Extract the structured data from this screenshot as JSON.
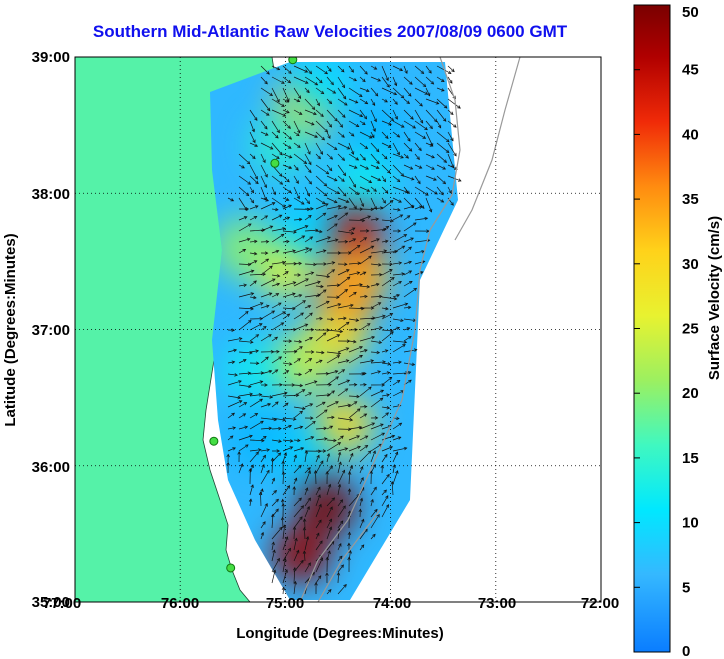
{
  "title": "Southern Mid-Atlantic Raw Velocities 2007/08/09 0600 GMT",
  "x_axis": {
    "label": "Longitude (Degrees:Minutes)",
    "ticks": [
      "77:00",
      "76:00",
      "75:00",
      "74:00",
      "73:00",
      "72:00"
    ]
  },
  "y_axis": {
    "label": "Latitude (Degrees:Minutes)",
    "ticks": [
      "39:00",
      "38:00",
      "37:00",
      "36:00",
      "35:00"
    ]
  },
  "colorbar": {
    "label": "Surface Velocity (cm/s)",
    "min": 0,
    "max": 50,
    "ticks": [
      "0",
      "5",
      "10",
      "15",
      "20",
      "25",
      "30",
      "35",
      "40",
      "45",
      "50"
    ]
  },
  "chart_data": {
    "type": "heatmap",
    "xlim": [
      -77,
      -72
    ],
    "ylim": [
      35,
      39
    ],
    "grid": true,
    "colormap": "jet",
    "land_color": "#55f2a8",
    "water_color": "#ffffff",
    "site_color": "#44dd44",
    "hotspots": [
      {
        "lon": -74.35,
        "lat": 37.7,
        "value": 45
      },
      {
        "lon": -74.4,
        "lat": 37.25,
        "value": 38
      },
      {
        "lon": -74.3,
        "lat": 37.4,
        "value": 34
      },
      {
        "lon": -74.5,
        "lat": 36.95,
        "value": 30
      },
      {
        "lon": -74.85,
        "lat": 36.75,
        "value": 24
      },
      {
        "lon": -74.45,
        "lat": 36.3,
        "value": 30
      },
      {
        "lon": -74.6,
        "lat": 35.7,
        "value": 50
      },
      {
        "lon": -74.85,
        "lat": 35.35,
        "value": 48
      },
      {
        "lon": -74.8,
        "lat": 38.65,
        "value": 30
      },
      {
        "lon": -75.0,
        "lat": 37.45,
        "value": 26
      },
      {
        "lon": -75.05,
        "lat": 38.35,
        "value": 14
      },
      {
        "lon": -74.15,
        "lat": 38.45,
        "value": 6
      },
      {
        "lon": -74.8,
        "lat": 37.75,
        "value": 9
      },
      {
        "lon": -75.25,
        "lat": 36.2,
        "value": 6
      },
      {
        "lon": -74.85,
        "lat": 36.1,
        "value": 8
      },
      {
        "lon": -74.65,
        "lat": 38.8,
        "value": 10
      },
      {
        "lon": -75.4,
        "lat": 37.6,
        "value": 20
      },
      {
        "lon": -75.3,
        "lat": 36.7,
        "value": 12
      },
      {
        "lon": -74.25,
        "lat": 38.1,
        "value": 12
      }
    ],
    "sites": [
      {
        "lon": -74.93,
        "lat": 38.98
      },
      {
        "lon": -75.1,
        "lat": 38.22
      },
      {
        "lon": -75.68,
        "lat": 36.18
      },
      {
        "lon": -75.52,
        "lat": 35.25
      }
    ]
  }
}
